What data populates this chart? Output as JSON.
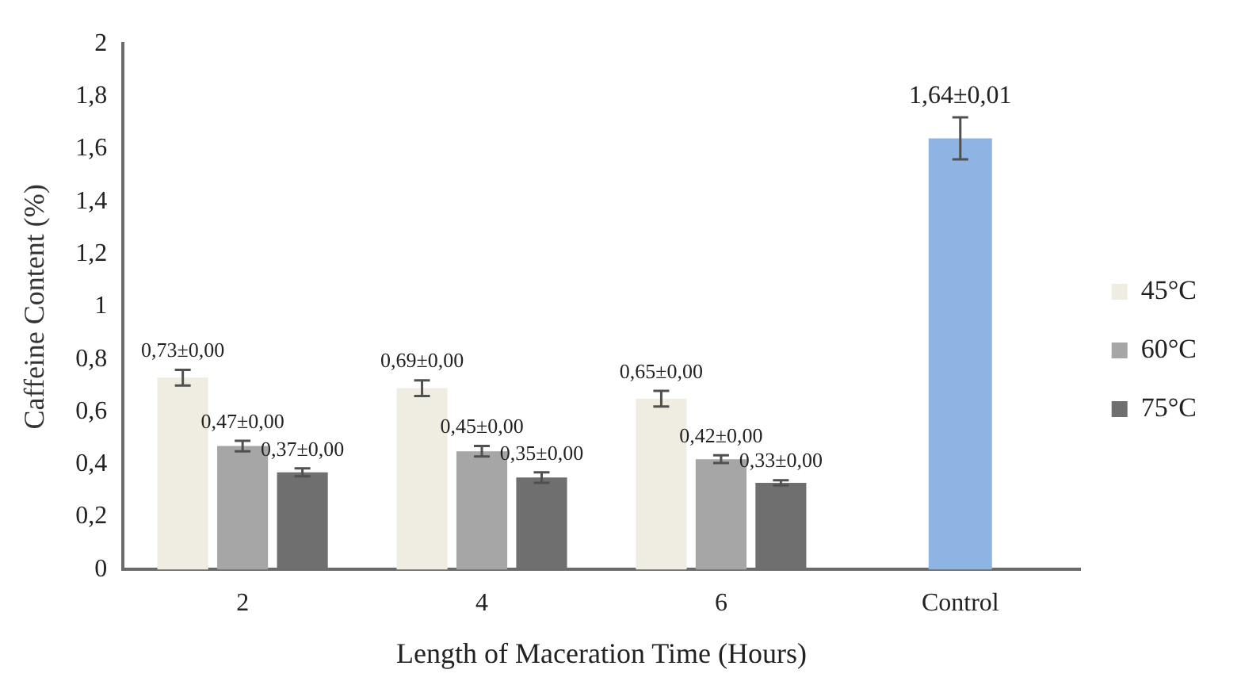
{
  "chart_data": {
    "type": "bar",
    "xlabel": "Length of Maceration Time (Hours)",
    "ylabel": "Caffeine Content (%)",
    "categories": [
      "2",
      "4",
      "6",
      "Control"
    ],
    "series": [
      {
        "name": "45°C",
        "color": "#efede2",
        "values": [
          0.73,
          0.69,
          0.65,
          null
        ],
        "errors": [
          0.03,
          0.03,
          0.03,
          null
        ],
        "value_labels": [
          "0,73±0,00",
          "0,69±0,00",
          "0,65±0,00",
          null
        ]
      },
      {
        "name": "60°C",
        "color": "#a6a6a6",
        "values": [
          0.47,
          0.45,
          0.42,
          null
        ],
        "errors": [
          0.02,
          0.02,
          0.015,
          null
        ],
        "value_labels": [
          "0,47±0,00",
          "0,45±0,00",
          "0,42±0,00",
          null
        ]
      },
      {
        "name": "75°C",
        "color": "#6f6f6f",
        "values": [
          0.37,
          0.35,
          0.33,
          null
        ],
        "errors": [
          0.015,
          0.02,
          0.01,
          null
        ],
        "value_labels": [
          "0,37±0,00",
          "0,35±0,00",
          "0,33±0,00",
          null
        ]
      },
      {
        "color": "#8db4e2",
        "values": [
          null,
          null,
          null,
          1.64
        ],
        "errors": [
          null,
          null,
          null,
          0.08
        ],
        "value_labels": [
          null,
          null,
          null,
          "1,64±0,01"
        ]
      }
    ],
    "ylim": [
      0,
      2
    ],
    "yticks": [
      0,
      {
        "value": 0.2,
        "label": "0,2"
      },
      {
        "value": 0.4,
        "label": "0,4"
      },
      {
        "value": 0.6,
        "label": "0,6"
      },
      {
        "value": 0.8,
        "label": "0,8"
      },
      1,
      {
        "value": 1.2,
        "label": "1,2"
      },
      {
        "value": 1.4,
        "label": "1,4"
      },
      {
        "value": 1.6,
        "label": "1,6"
      },
      {
        "value": 1.8,
        "label": "1,8"
      },
      2
    ],
    "grid": false,
    "legend": "right"
  }
}
